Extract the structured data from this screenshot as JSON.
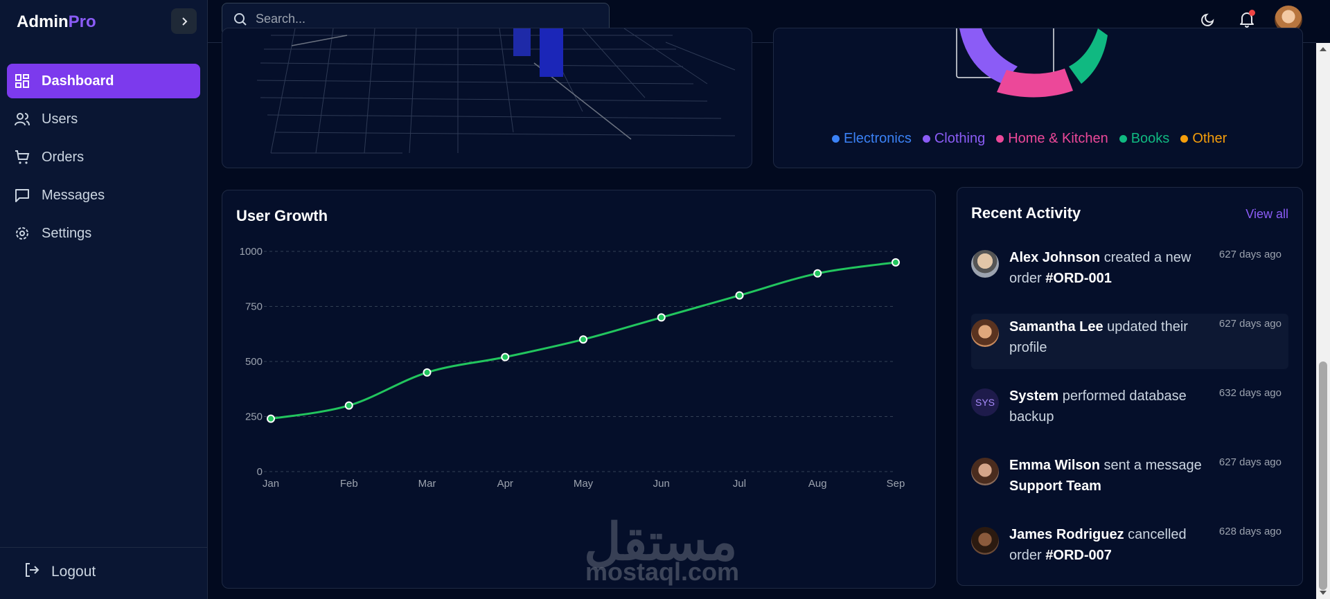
{
  "brand": {
    "name": "Admin",
    "accent": "Pro"
  },
  "sidebar": {
    "items": [
      {
        "label": "Dashboard",
        "icon": "dashboard-icon",
        "active": true
      },
      {
        "label": "Users",
        "icon": "users-icon"
      },
      {
        "label": "Orders",
        "icon": "cart-icon"
      },
      {
        "label": "Messages",
        "icon": "message-icon"
      },
      {
        "label": "Settings",
        "icon": "gear-icon"
      }
    ],
    "logout": "Logout"
  },
  "search": {
    "placeholder": "Search..."
  },
  "category_legend": [
    {
      "label": "Electronics",
      "color": "#3b82f6"
    },
    {
      "label": "Clothing",
      "color": "#8b5cf6"
    },
    {
      "label": "Home & Kitchen",
      "color": "#ec4899"
    },
    {
      "label": "Books",
      "color": "#10b981"
    },
    {
      "label": "Other",
      "color": "#f59e0b"
    }
  ],
  "growth": {
    "title": "User Growth",
    "chart_data": {
      "type": "line",
      "title": "User Growth",
      "categories": [
        "Jan",
        "Feb",
        "Mar",
        "Apr",
        "May",
        "Jun",
        "Jul",
        "Aug",
        "Sep"
      ],
      "values": [
        240,
        300,
        450,
        520,
        600,
        700,
        800,
        900,
        950
      ],
      "yticks": [
        "0",
        "250",
        "500",
        "750",
        "1000"
      ],
      "ylim": [
        0,
        1000
      ],
      "grid": true,
      "color": "#22c55e"
    }
  },
  "activity": {
    "title": "Recent Activity",
    "view_all": "View all",
    "items": [
      {
        "name": "Alex Johnson",
        "action": "created a new order",
        "target": "#ORD-001",
        "time": "627 days ago"
      },
      {
        "name": "Samantha Lee",
        "action": "updated their profile",
        "target": "",
        "time": "627 days ago"
      },
      {
        "name": "System",
        "action": "performed database backup",
        "target": "",
        "time": "632 days ago",
        "initials": "SYS"
      },
      {
        "name": "Emma Wilson",
        "action": "sent a message",
        "target": "Support Team",
        "time": "627 days ago"
      },
      {
        "name": "James Rodriguez",
        "action": "cancelled order",
        "target": "#ORD-007",
        "time": "628 days ago"
      }
    ]
  },
  "watermark": {
    "arabic": "مستقل",
    "latin": "mostaql.com"
  }
}
